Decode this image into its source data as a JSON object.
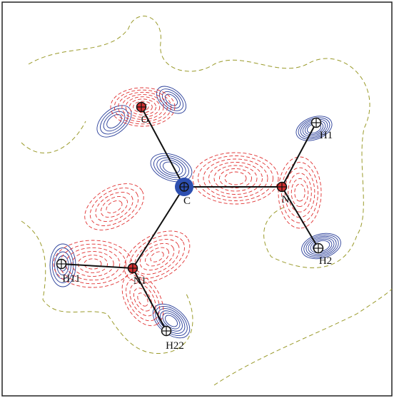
{
  "nodes": [
    {
      "label": "O"
    },
    {
      "label": "C"
    },
    {
      "label": "N"
    },
    {
      "label": "H1"
    },
    {
      "label": "H2"
    },
    {
      "label": "N1"
    },
    {
      "label": "H11"
    },
    {
      "label": "H22"
    }
  ]
}
